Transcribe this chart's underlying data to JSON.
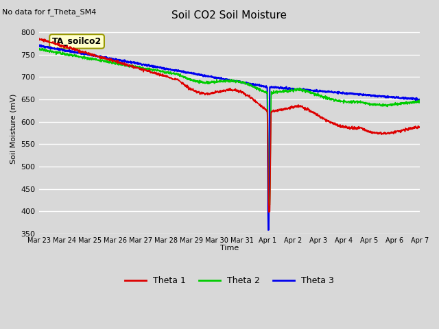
{
  "title": "Soil CO2 Soil Moisture",
  "no_data_text": "No data for f_Theta_SM4",
  "ylabel": "Soil Moisture (mV)",
  "xlabel": "Time",
  "ylim": [
    350,
    820
  ],
  "yticks": [
    350,
    400,
    450,
    500,
    550,
    600,
    650,
    700,
    750,
    800
  ],
  "bg_color": "#d8d8d8",
  "plot_bg_color": "#d8d8d8",
  "grid_color": "#ffffff",
  "legend_label": "TA_soilco2",
  "series_labels": [
    "Theta 1",
    "Theta 2",
    "Theta 3"
  ],
  "series_colors": [
    "#dd0000",
    "#00cc00",
    "#0000ee"
  ],
  "xtick_labels": [
    "Mar 23",
    "Mar 24",
    "Mar 25",
    "Mar 26",
    "Mar 27",
    "Mar 28",
    "Mar 29",
    "Mar 30",
    "Mar 31",
    "Apr 1",
    "Apr 2",
    "Apr 3",
    "Apr 4",
    "Apr 5",
    "Apr 6",
    "Apr 7"
  ]
}
